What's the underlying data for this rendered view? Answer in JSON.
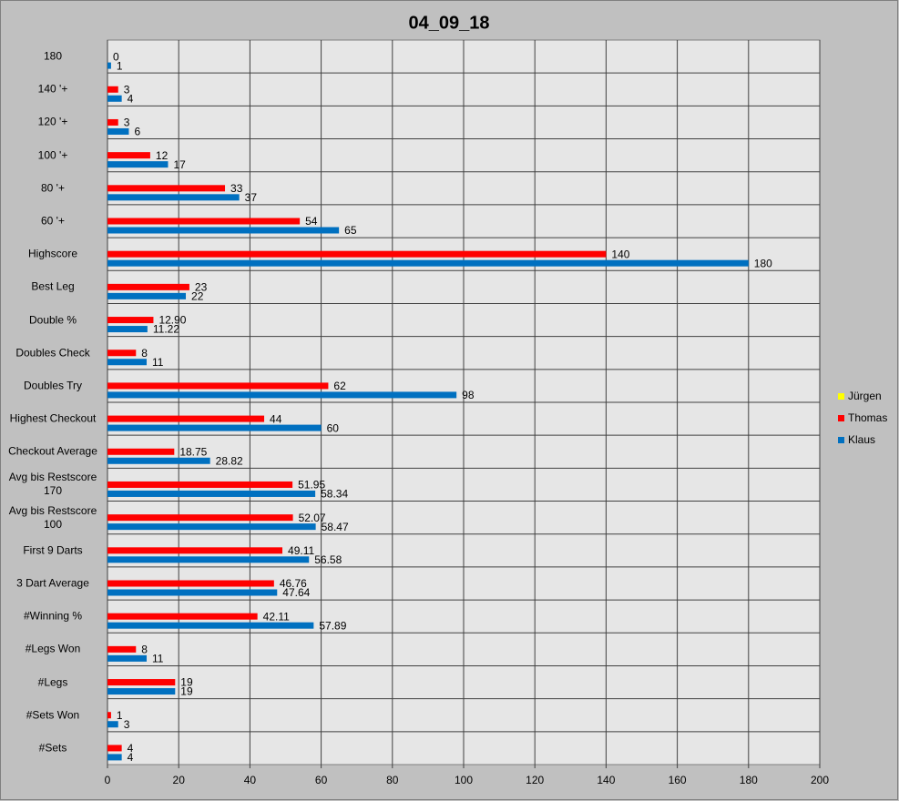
{
  "chart_data": {
    "type": "bar",
    "orientation": "horizontal",
    "title": "04_09_18",
    "categories": [
      "180",
      "140 '+",
      "120 '+",
      "100 '+",
      "80 '+",
      "60 '+",
      "Highscore",
      "Best Leg",
      "Double %",
      "Doubles Check",
      "Doubles Try",
      "Highest Checkout",
      "Checkout Average",
      "Avg bis Restscore 170",
      "Avg bis Restscore 100",
      "First 9 Darts",
      "3 Dart Average",
      "#Winning %",
      "#Legs Won",
      "#Legs",
      "#Sets Won",
      "#Sets"
    ],
    "series": [
      {
        "name": "Jürgen",
        "color": "#ffff00",
        "values": [
          null,
          null,
          null,
          null,
          null,
          null,
          null,
          null,
          null,
          null,
          null,
          null,
          null,
          null,
          null,
          null,
          null,
          null,
          null,
          null,
          null,
          null
        ]
      },
      {
        "name": "Thomas",
        "color": "#ff0000",
        "values": [
          0,
          3,
          3,
          12,
          33,
          54,
          140,
          23,
          12.9,
          8,
          62,
          44,
          18.75,
          51.95,
          52.07,
          49.11,
          46.76,
          42.11,
          8,
          19,
          1,
          4
        ],
        "value_labels": [
          "0",
          "3",
          "3",
          "12",
          "33",
          "54",
          "140",
          "23",
          "12.90",
          "8",
          "62",
          "44",
          "18.75",
          "51.95",
          "52.07",
          "49.11",
          "46.76",
          "42.11",
          "8",
          "19",
          "1",
          "4"
        ]
      },
      {
        "name": "Klaus",
        "color": "#0070c0",
        "values": [
          1,
          4,
          6,
          17,
          37,
          65,
          180,
          22,
          11.22,
          11,
          98,
          60,
          28.82,
          58.34,
          58.47,
          56.58,
          47.64,
          57.89,
          11,
          19,
          3,
          4
        ]
      }
    ],
    "xlim": [
      0,
      200
    ],
    "xticks": [
      0,
      20,
      40,
      60,
      80,
      100,
      120,
      140,
      160,
      180,
      200
    ],
    "grid": true,
    "legend": "right"
  }
}
